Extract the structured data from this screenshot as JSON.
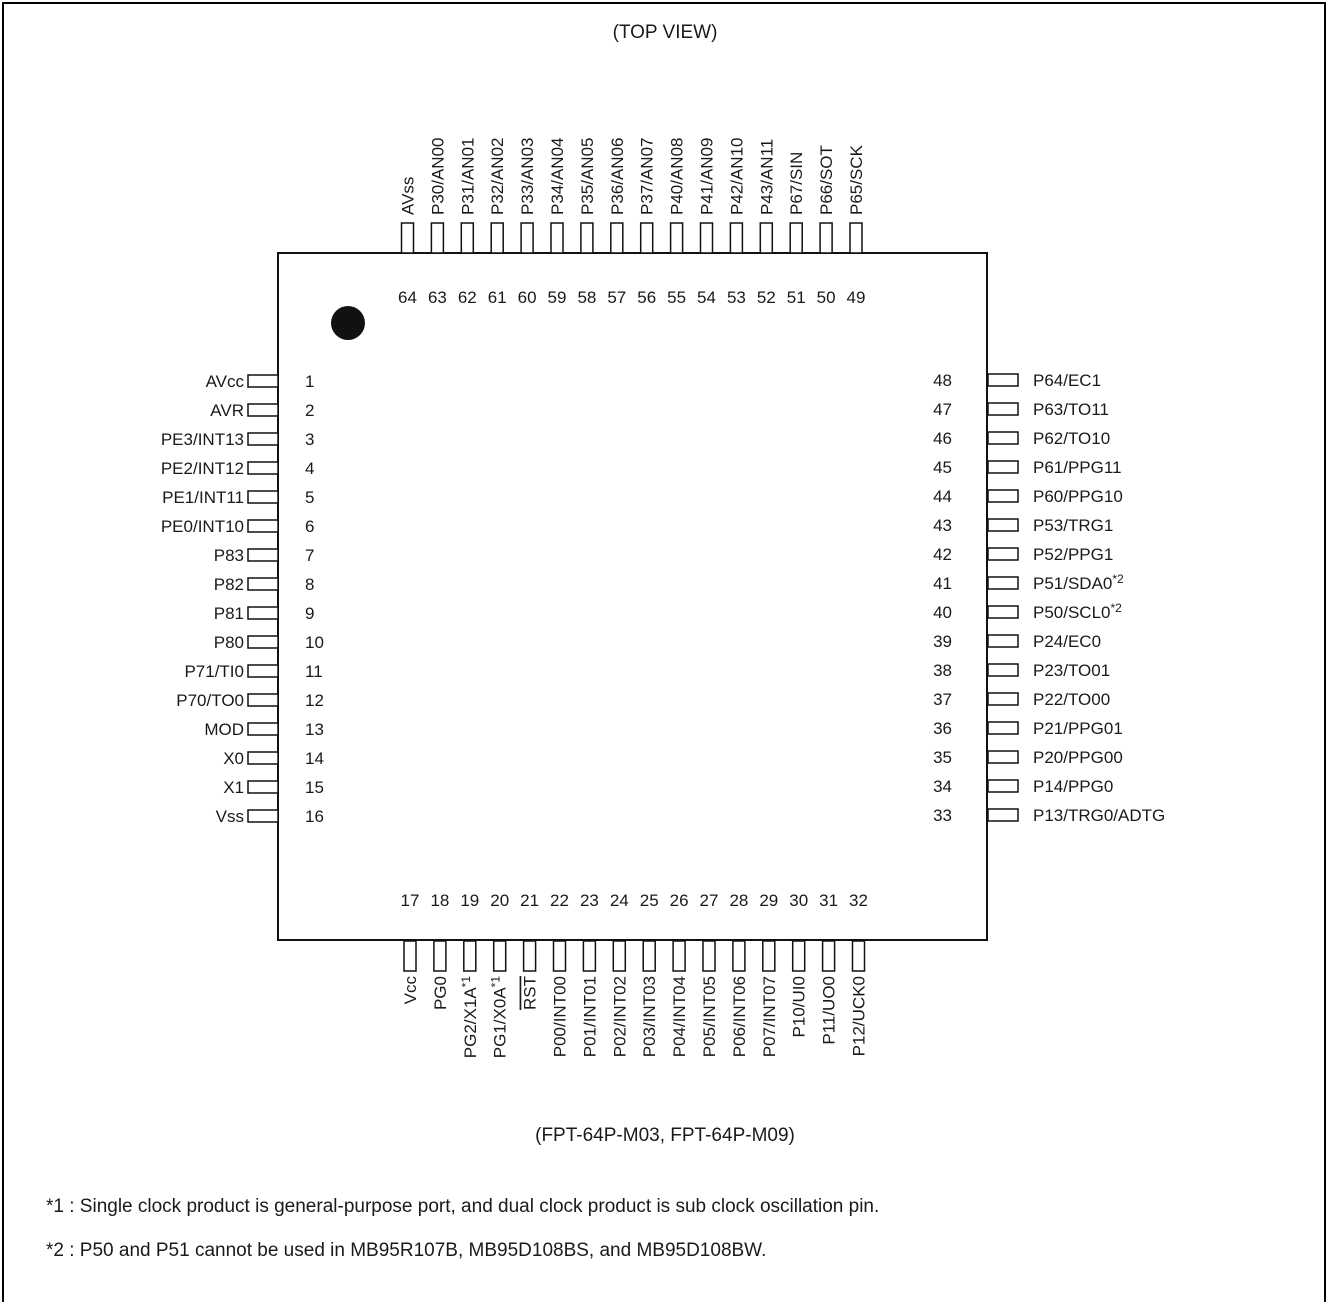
{
  "view_title": "(TOP VIEW)",
  "package_caption": "(FPT-64P-M03, FPT-64P-M09)",
  "footnotes": [
    "*1 : Single clock product is general-purpose port, and dual clock product is sub clock oscillation pin.",
    "*2 : P50 and P51 cannot be used in MB95R107B, MB95D108BS, and MB95D108BW."
  ],
  "pins": {
    "left": [
      {
        "num": "1",
        "name": "AVcc"
      },
      {
        "num": "2",
        "name": "AVR"
      },
      {
        "num": "3",
        "name": "PE3/INT13"
      },
      {
        "num": "4",
        "name": "PE2/INT12"
      },
      {
        "num": "5",
        "name": "PE1/INT11"
      },
      {
        "num": "6",
        "name": "PE0/INT10"
      },
      {
        "num": "7",
        "name": "P83"
      },
      {
        "num": "8",
        "name": "P82"
      },
      {
        "num": "9",
        "name": "P81"
      },
      {
        "num": "10",
        "name": "P80"
      },
      {
        "num": "11",
        "name": "P71/TI0"
      },
      {
        "num": "12",
        "name": "P70/TO0"
      },
      {
        "num": "13",
        "name": "MOD"
      },
      {
        "num": "14",
        "name": "X0"
      },
      {
        "num": "15",
        "name": "X1"
      },
      {
        "num": "16",
        "name": "Vss"
      }
    ],
    "bottom": [
      {
        "num": "17",
        "name": "Vcc"
      },
      {
        "num": "18",
        "name": "PG0"
      },
      {
        "num": "19",
        "name": "PG2/X1A",
        "sup": "*1"
      },
      {
        "num": "20",
        "name": "PG1/X0A",
        "sup": "*1"
      },
      {
        "num": "21",
        "name": "RST",
        "overline": true
      },
      {
        "num": "22",
        "name": "P00/INT00"
      },
      {
        "num": "23",
        "name": "P01/INT01"
      },
      {
        "num": "24",
        "name": "P02/INT02"
      },
      {
        "num": "25",
        "name": "P03/INT03"
      },
      {
        "num": "26",
        "name": "P04/INT04"
      },
      {
        "num": "27",
        "name": "P05/INT05"
      },
      {
        "num": "28",
        "name": "P06/INT06"
      },
      {
        "num": "29",
        "name": "P07/INT07"
      },
      {
        "num": "30",
        "name": "P10/UI0"
      },
      {
        "num": "31",
        "name": "P11/UO0"
      },
      {
        "num": "32",
        "name": "P12/UCK0"
      }
    ],
    "right": [
      {
        "num": "33",
        "name": "P13/TRG0/ADTG"
      },
      {
        "num": "34",
        "name": "P14/PPG0"
      },
      {
        "num": "35",
        "name": "P20/PPG00"
      },
      {
        "num": "36",
        "name": "P21/PPG01"
      },
      {
        "num": "37",
        "name": "P22/TO00"
      },
      {
        "num": "38",
        "name": "P23/TO01"
      },
      {
        "num": "39",
        "name": "P24/EC0"
      },
      {
        "num": "40",
        "name": "P50/SCL0",
        "sup": "*2"
      },
      {
        "num": "41",
        "name": "P51/SDA0",
        "sup": "*2"
      },
      {
        "num": "42",
        "name": "P52/PPG1"
      },
      {
        "num": "43",
        "name": "P53/TRG1"
      },
      {
        "num": "44",
        "name": "P60/PPG10"
      },
      {
        "num": "45",
        "name": "P61/PPG11"
      },
      {
        "num": "46",
        "name": "P62/TO10"
      },
      {
        "num": "47",
        "name": "P63/TO11"
      },
      {
        "num": "48",
        "name": "P64/EC1"
      }
    ],
    "top": [
      {
        "num": "49",
        "name": "P65/SCK"
      },
      {
        "num": "50",
        "name": "P66/SOT"
      },
      {
        "num": "51",
        "name": "P67/SIN"
      },
      {
        "num": "52",
        "name": "P43/AN11"
      },
      {
        "num": "53",
        "name": "P42/AN10"
      },
      {
        "num": "54",
        "name": "P41/AN09"
      },
      {
        "num": "55",
        "name": "P40/AN08"
      },
      {
        "num": "56",
        "name": "P37/AN07"
      },
      {
        "num": "57",
        "name": "P36/AN06"
      },
      {
        "num": "58",
        "name": "P35/AN05"
      },
      {
        "num": "59",
        "name": "P34/AN04"
      },
      {
        "num": "60",
        "name": "P33/AN03"
      },
      {
        "num": "61",
        "name": "P32/AN02"
      },
      {
        "num": "62",
        "name": "P31/AN01"
      },
      {
        "num": "63",
        "name": "P30/AN00"
      },
      {
        "num": "64",
        "name": "AVss"
      }
    ]
  }
}
